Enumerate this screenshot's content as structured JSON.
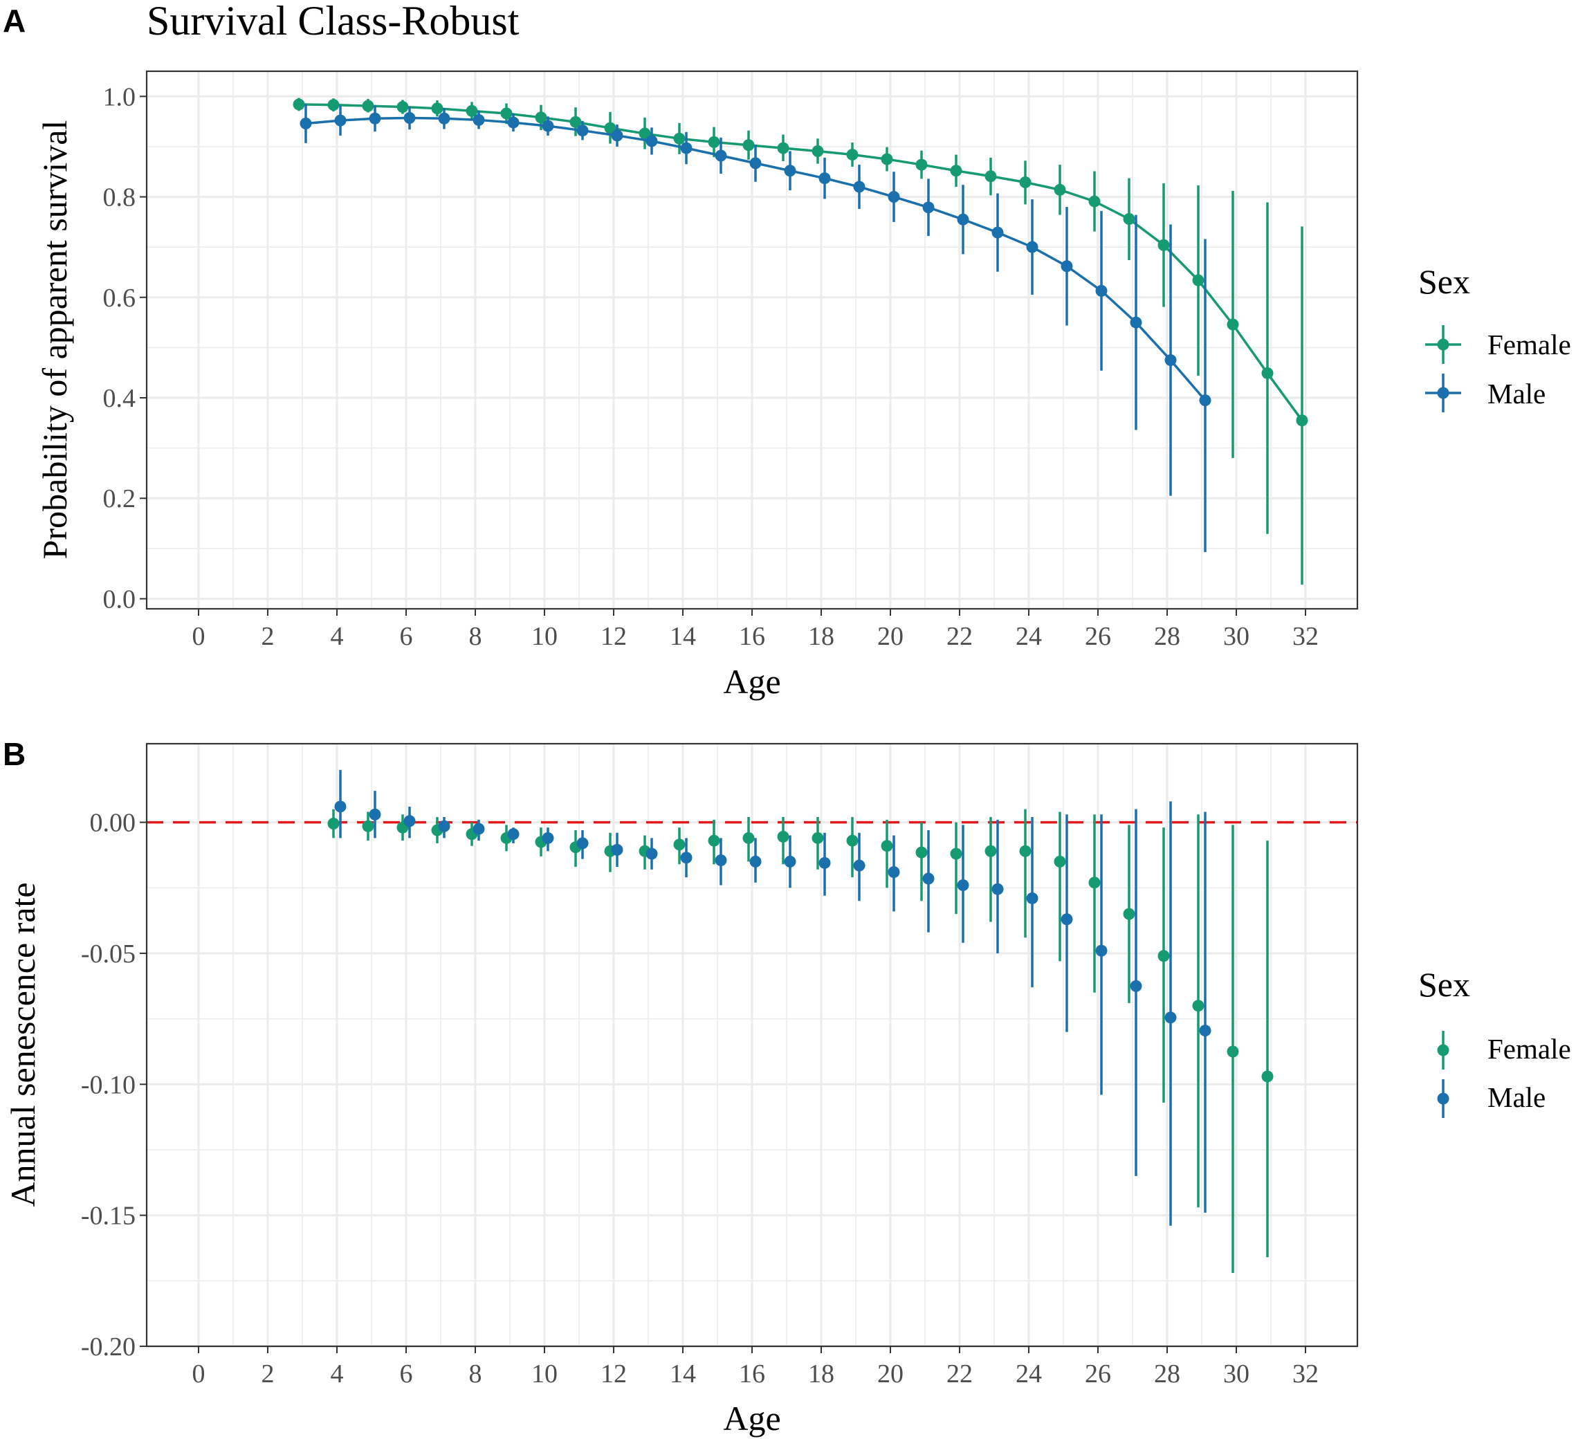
{
  "colors": {
    "female": "#169A72",
    "male": "#1A6FAD",
    "reference": "#E31A1C",
    "grid": "#EBEBEB",
    "frame": "#333333",
    "text": "#000000",
    "tick_text": "#4D4D4D"
  },
  "figure_title": "Survival Class-Robust",
  "chart_data": [
    {
      "panel_label": "A",
      "type": "line",
      "title": "Survival Class-Robust",
      "xlabel": "Age",
      "ylabel": "Probability of apparent survival",
      "xlim": [
        -1.5,
        33.5
      ],
      "ylim": [
        -0.02,
        1.05
      ],
      "xticks": [
        0,
        2,
        4,
        6,
        8,
        10,
        12,
        14,
        16,
        18,
        20,
        22,
        24,
        26,
        28,
        30,
        32
      ],
      "xtick_labels": [
        "0",
        "2",
        "4",
        "6",
        "8",
        "10",
        "12",
        "14",
        "16",
        "18",
        "20",
        "22",
        "24",
        "26",
        "28",
        "30",
        "32"
      ],
      "yticks": [
        0.0,
        0.2,
        0.4,
        0.6,
        0.8,
        1.0
      ],
      "ytick_labels": [
        "0.0",
        "0.2",
        "0.4",
        "0.6",
        "0.8",
        "1.0"
      ],
      "grid": true,
      "lines": true,
      "legend": {
        "title": "Sex",
        "position": "right",
        "entries": [
          "Female",
          "Male"
        ]
      },
      "series": [
        {
          "name": "Female",
          "color_key": "female",
          "dodge": -0.1,
          "x": [
            3,
            4,
            5,
            6,
            7,
            8,
            9,
            10,
            11,
            12,
            13,
            14,
            15,
            16,
            17,
            18,
            19,
            20,
            21,
            22,
            23,
            24,
            25,
            26,
            27,
            28,
            29,
            30,
            31,
            32
          ],
          "y": [
            0.984,
            0.983,
            0.981,
            0.979,
            0.976,
            0.971,
            0.966,
            0.958,
            0.949,
            0.937,
            0.926,
            0.916,
            0.909,
            0.903,
            0.897,
            0.891,
            0.884,
            0.875,
            0.864,
            0.852,
            0.841,
            0.829,
            0.814,
            0.791,
            0.756,
            0.704,
            0.634,
            0.546,
            0.449,
            0.355
          ],
          "lower": [
            0.971,
            0.97,
            0.968,
            0.965,
            0.96,
            0.954,
            0.945,
            0.933,
            0.921,
            0.906,
            0.895,
            0.885,
            0.879,
            0.874,
            0.871,
            0.866,
            0.86,
            0.851,
            0.836,
            0.82,
            0.803,
            0.785,
            0.764,
            0.731,
            0.674,
            0.581,
            0.444,
            0.28,
            0.129,
            0.028
          ],
          "upper": [
            0.997,
            0.996,
            0.995,
            0.993,
            0.992,
            0.989,
            0.986,
            0.983,
            0.978,
            0.969,
            0.958,
            0.947,
            0.939,
            0.932,
            0.924,
            0.916,
            0.908,
            0.899,
            0.892,
            0.884,
            0.878,
            0.872,
            0.864,
            0.851,
            0.837,
            0.827,
            0.823,
            0.812,
            0.789,
            0.741
          ]
        },
        {
          "name": "Male",
          "color_key": "male",
          "dodge": 0.1,
          "x": [
            3,
            4,
            5,
            6,
            7,
            8,
            9,
            10,
            11,
            12,
            13,
            14,
            15,
            16,
            17,
            18,
            19,
            20,
            21,
            22,
            23,
            24,
            25,
            26,
            27,
            28,
            29
          ],
          "y": [
            0.946,
            0.952,
            0.956,
            0.957,
            0.956,
            0.953,
            0.948,
            0.941,
            0.932,
            0.922,
            0.911,
            0.897,
            0.882,
            0.867,
            0.852,
            0.837,
            0.82,
            0.8,
            0.779,
            0.755,
            0.729,
            0.7,
            0.662,
            0.613,
            0.55,
            0.475,
            0.395
          ],
          "lower": [
            0.907,
            0.922,
            0.93,
            0.934,
            0.935,
            0.935,
            0.93,
            0.922,
            0.913,
            0.9,
            0.884,
            0.865,
            0.846,
            0.83,
            0.813,
            0.796,
            0.776,
            0.75,
            0.722,
            0.686,
            0.651,
            0.605,
            0.544,
            0.454,
            0.336,
            0.205,
            0.093
          ],
          "upper": [
            0.985,
            0.982,
            0.982,
            0.98,
            0.977,
            0.971,
            0.966,
            0.96,
            0.951,
            0.944,
            0.938,
            0.929,
            0.918,
            0.904,
            0.891,
            0.878,
            0.864,
            0.85,
            0.836,
            0.824,
            0.807,
            0.795,
            0.78,
            0.772,
            0.764,
            0.745,
            0.716
          ]
        }
      ]
    },
    {
      "panel_label": "B",
      "type": "scatter",
      "title": "",
      "xlabel": "Age",
      "ylabel": "Annual senescence rate",
      "xlim": [
        -1.5,
        33.5
      ],
      "ylim": [
        -0.2,
        0.03
      ],
      "xticks": [
        0,
        2,
        4,
        6,
        8,
        10,
        12,
        14,
        16,
        18,
        20,
        22,
        24,
        26,
        28,
        30,
        32
      ],
      "xtick_labels": [
        "0",
        "2",
        "4",
        "6",
        "8",
        "10",
        "12",
        "14",
        "16",
        "18",
        "20",
        "22",
        "24",
        "26",
        "28",
        "30",
        "32"
      ],
      "yticks": [
        -0.2,
        -0.15,
        -0.1,
        -0.05,
        0.0
      ],
      "ytick_labels": [
        "-0.20",
        "-0.15",
        "-0.10",
        "-0.05",
        "0.00"
      ],
      "grid": true,
      "lines": false,
      "reference_line": {
        "y": 0.0,
        "style": "dashed",
        "color_key": "reference"
      },
      "legend": {
        "title": "Sex",
        "position": "right",
        "entries": [
          "Female",
          "Male"
        ]
      },
      "series": [
        {
          "name": "Female",
          "color_key": "female",
          "dodge": -0.1,
          "x": [
            4,
            5,
            6,
            7,
            8,
            9,
            10,
            11,
            12,
            13,
            14,
            15,
            16,
            17,
            18,
            19,
            20,
            21,
            22,
            23,
            24,
            25,
            26,
            27,
            28,
            29,
            30,
            31
          ],
          "y": [
            -0.0005,
            -0.0015,
            -0.002,
            -0.003,
            -0.0045,
            -0.006,
            -0.0075,
            -0.0095,
            -0.011,
            -0.011,
            -0.0085,
            -0.007,
            -0.006,
            -0.0055,
            -0.006,
            -0.007,
            -0.009,
            -0.0115,
            -0.012,
            -0.011,
            -0.011,
            -0.015,
            -0.023,
            -0.035,
            -0.051,
            -0.07,
            -0.0875,
            -0.097
          ],
          "lower": [
            -0.006,
            -0.007,
            -0.007,
            -0.008,
            -0.009,
            -0.011,
            -0.013,
            -0.017,
            -0.019,
            -0.018,
            -0.016,
            -0.016,
            -0.015,
            -0.016,
            -0.018,
            -0.021,
            -0.025,
            -0.03,
            -0.035,
            -0.038,
            -0.044,
            -0.053,
            -0.065,
            -0.069,
            -0.107,
            -0.147,
            -0.172,
            -0.166
          ],
          "upper": [
            0.005,
            0.004,
            0.003,
            0.002,
            0.0,
            -0.001,
            -0.002,
            -0.003,
            -0.004,
            -0.005,
            -0.002,
            0.001,
            0.002,
            0.002,
            0.002,
            0.002,
            0.001,
            0.0,
            0.0,
            0.002,
            0.005,
            0.004,
            0.003,
            -0.001,
            -0.002,
            0.003,
            -0.001,
            -0.007
          ]
        },
        {
          "name": "Male",
          "color_key": "male",
          "dodge": 0.1,
          "x": [
            4,
            5,
            6,
            7,
            8,
            9,
            10,
            11,
            12,
            13,
            14,
            15,
            16,
            17,
            18,
            19,
            20,
            21,
            22,
            23,
            24,
            25,
            26,
            27,
            28,
            29
          ],
          "y": [
            0.006,
            0.003,
            0.0005,
            -0.0015,
            -0.0025,
            -0.0045,
            -0.006,
            -0.008,
            -0.0105,
            -0.012,
            -0.0135,
            -0.0145,
            -0.015,
            -0.015,
            -0.0155,
            -0.0165,
            -0.019,
            -0.0215,
            -0.024,
            -0.0255,
            -0.029,
            -0.037,
            -0.049,
            -0.0625,
            -0.0745,
            -0.0795
          ],
          "lower": [
            -0.006,
            -0.006,
            -0.006,
            -0.006,
            -0.007,
            -0.008,
            -0.011,
            -0.014,
            -0.017,
            -0.018,
            -0.021,
            -0.024,
            -0.023,
            -0.025,
            -0.028,
            -0.03,
            -0.034,
            -0.042,
            -0.046,
            -0.05,
            -0.063,
            -0.08,
            -0.104,
            -0.135,
            -0.154,
            -0.149
          ],
          "upper": [
            0.02,
            0.012,
            0.006,
            0.002,
            0.001,
            -0.002,
            -0.002,
            -0.003,
            -0.004,
            -0.006,
            -0.006,
            -0.006,
            -0.006,
            -0.005,
            -0.004,
            -0.004,
            -0.005,
            -0.003,
            -0.001,
            0.001,
            0.002,
            0.003,
            0.003,
            0.005,
            0.008,
            0.004
          ]
        }
      ]
    }
  ]
}
